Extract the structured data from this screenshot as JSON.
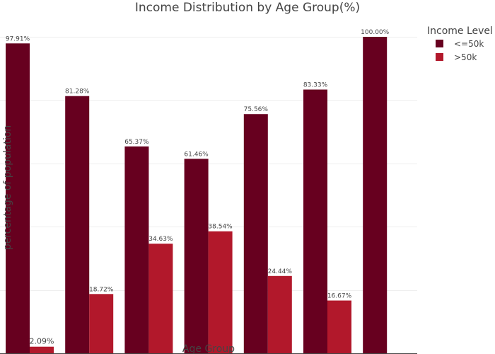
{
  "chart_data": {
    "type": "bar",
    "title": "Income Distribution by Age Group(%)",
    "xlabel": "Age Group",
    "ylabel": "percentage of population",
    "legend_title": "Income Level",
    "legend_position": "top-right",
    "grid": true,
    "ylim": [
      0,
      100
    ],
    "series": [
      {
        "name": "<=50k",
        "color": "#67001f",
        "values": [
          97.91,
          81.28,
          65.37,
          61.46,
          75.56,
          83.33,
          100.0
        ],
        "labels": [
          "97.91%",
          "81.28%",
          "65.37%",
          "61.46%",
          "75.56%",
          "83.33%",
          "100.00%"
        ]
      },
      {
        "name": ">50k",
        "color": "#b2182b",
        "values": [
          2.09,
          18.72,
          34.63,
          38.54,
          24.44,
          16.67,
          null
        ],
        "labels": [
          "2.09%",
          "18.72%",
          "34.63%",
          "38.54%",
          "24.44%",
          "16.67%",
          null
        ]
      }
    ]
  }
}
